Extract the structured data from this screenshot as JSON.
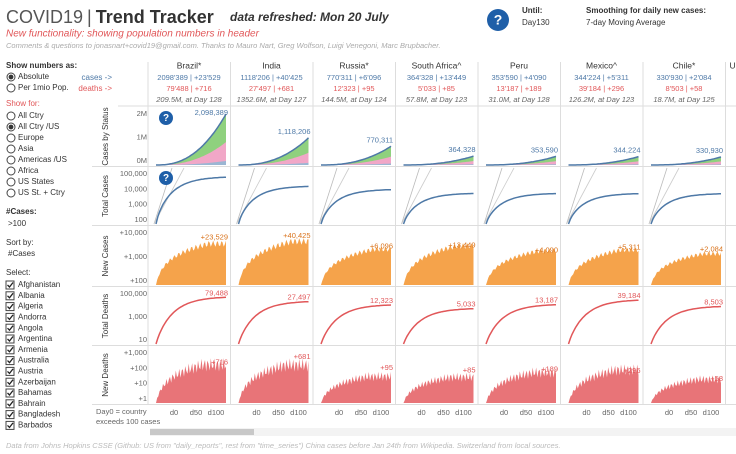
{
  "header": {
    "title_left": "COVID19",
    "title_sep": "|",
    "title_right": "Trend Tracker",
    "refreshed": "data refreshed: Mon 20 July",
    "new_functionality": "New functionality:  showing population numbers in header",
    "comments": "Comments & questions to jonasnart+covid19@gmail.com. Thanks to Mauro Nart, Greg Wolfson, Luigi Venegoni, Marc Brupbacher.",
    "help_icon": "?",
    "until_label": "Until:",
    "until_value": "Day130",
    "smoothing_label": "Smoothing for daily new cases:",
    "smoothing_value": "7-day Moving Average"
  },
  "sidebar": {
    "numbers_label": "Show numbers as:",
    "numbers_options": [
      "Absolute",
      "Per 1mio Pop."
    ],
    "show_for_label": "Show for:",
    "show_for_options": [
      "All Ctry",
      "All Ctry /US",
      "Europe",
      "Asia",
      "Americas /US",
      "Africa",
      "US States",
      "US St. + Ctry"
    ],
    "cases_label": "#Cases:",
    "cases_value": ">100",
    "sort_label": "Sort by:",
    "sort_value": "#Cases",
    "select_label": "Select:",
    "select_options": [
      "Afghanistan",
      "Albania",
      "Algeria",
      "Andorra",
      "Angola",
      "Argentina",
      "Armenia",
      "Australia",
      "Austria",
      "Azerbaijan",
      "Bahamas",
      "Bahrain",
      "Bangladesh",
      "Barbados"
    ]
  },
  "series_labels": {
    "cases": "cases ->",
    "deaths": "deaths ->"
  },
  "row_labels": [
    "Cases by Status",
    "Total Cases",
    "New Cases",
    "Total Deaths",
    "New Deaths"
  ],
  "yticks": [
    [
      "2M",
      "1M",
      "0M"
    ],
    [
      "100,000",
      "10,000",
      "1,000",
      "100"
    ],
    [
      "+10,000",
      "+1,000",
      "+100"
    ],
    [
      "100,000",
      "1,000",
      "10"
    ],
    [
      "+1,000",
      "+100",
      "+10",
      "+1"
    ]
  ],
  "xticks": [
    "d0",
    "d50",
    "d100"
  ],
  "countries": [
    {
      "name": "Brazil*",
      "cases": "2098'389 | +23'529",
      "deaths": "79'488 | +716",
      "population": "209.5M, at Day 128",
      "total_cases": "2,098,389",
      "new_cases": "+23,529",
      "total_deaths": "79,488",
      "new_deaths": "+716"
    },
    {
      "name": "India",
      "cases": "1118'206 | +40'425",
      "deaths": "27'497 | +681",
      "population": "1352.6M, at Day 127",
      "total_cases": "1,118,206",
      "new_cases": "+40,425",
      "total_deaths": "27,497",
      "new_deaths": "+681"
    },
    {
      "name": "Russia*",
      "cases": "770'311 | +6'096",
      "deaths": "12'323 | +95",
      "population": "144.5M, at Day 124",
      "total_cases": "770,311",
      "new_cases": "+6,096",
      "total_deaths": "12,323",
      "new_deaths": "+95"
    },
    {
      "name": "South Africa^",
      "cases": "364'328 | +13'449",
      "deaths": "5'033 | +85",
      "population": "57.8M, at Day 123",
      "total_cases": "364,328",
      "new_cases": "+13,449",
      "total_deaths": "5,033",
      "new_deaths": "+85"
    },
    {
      "name": "Peru",
      "cases": "353'590 | +4'090",
      "deaths": "13'187 | +189",
      "population": "31.0M, at Day 128",
      "total_cases": "353,590",
      "new_cases": "+4,090",
      "total_deaths": "13,187",
      "new_deaths": "+189"
    },
    {
      "name": "Mexico^",
      "cases": "344'224 | +5'311",
      "deaths": "39'184 | +296",
      "population": "126.2M, at Day 123",
      "total_cases": "344,224",
      "new_cases": "+5,311",
      "total_deaths": "39,184",
      "new_deaths": "+296"
    },
    {
      "name": "Chile*",
      "cases": "330'930 | +2'084",
      "deaths": "8'503 | +58",
      "population": "18.7M, at Day 125",
      "total_cases": "330,930",
      "new_cases": "+2,084",
      "total_deaths": "8,503",
      "new_deaths": "+58"
    }
  ],
  "partial_column": "Uni",
  "day0_note": [
    "Day0 = country",
    "exceeds 100 cases"
  ],
  "footer": "Data from Johns Hopkins CSSE (Github: US from \"daily_reports\", rest from \"time_series\") China cases before Jan 24th from Wikipedia. Switzerland from local sources."
}
